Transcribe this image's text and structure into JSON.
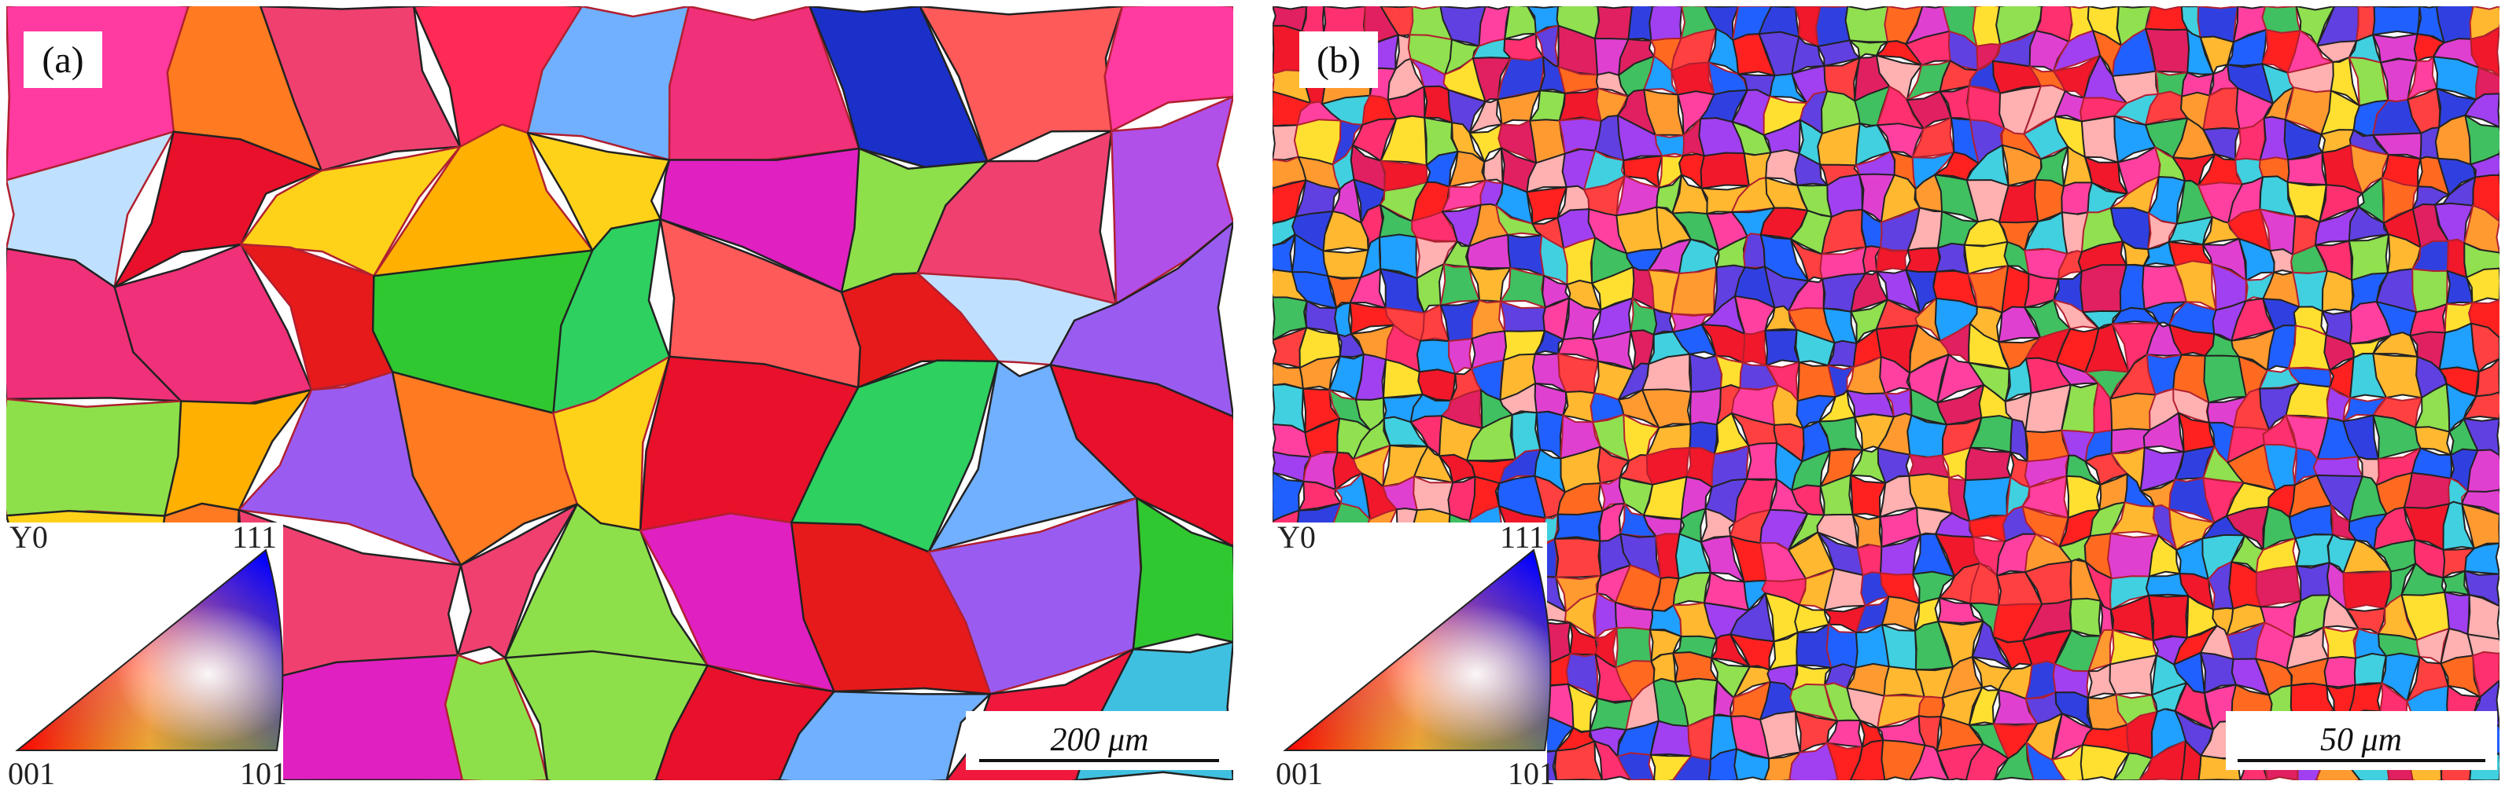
{
  "panels": [
    {
      "label": "(a)",
      "legend": {
        "axis": "Y0",
        "top": "111",
        "bottom_left": "001",
        "bottom_right": "101"
      },
      "scale_bar": "200 μm"
    },
    {
      "label": "(b)",
      "legend": {
        "axis": "Y0",
        "top": "111",
        "bottom_left": "001",
        "bottom_right": "101"
      },
      "scale_bar": "50 μm"
    }
  ]
}
